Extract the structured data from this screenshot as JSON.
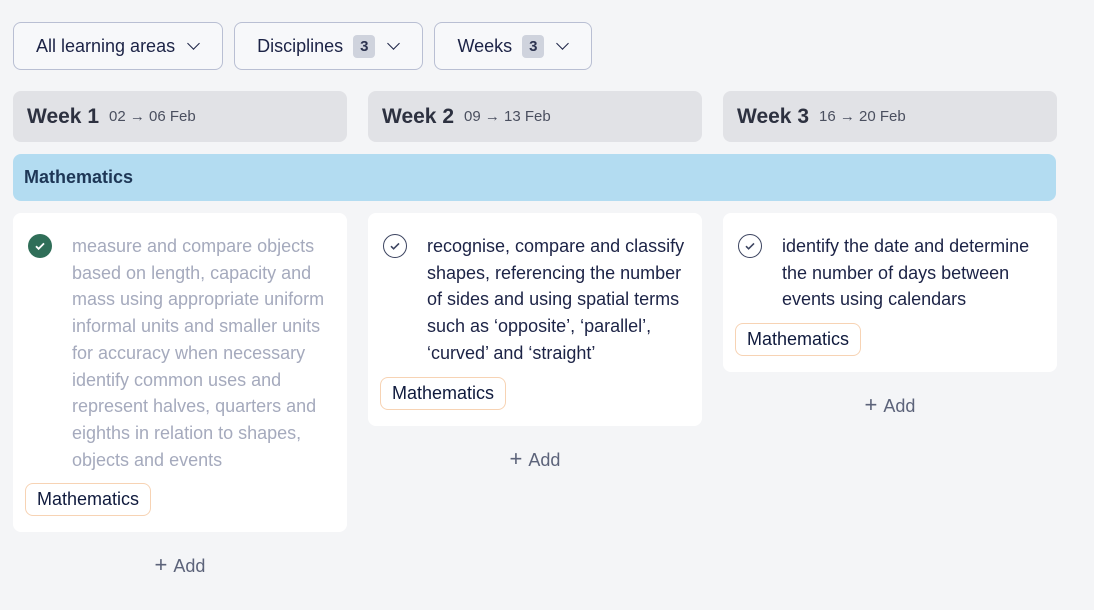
{
  "filters": [
    {
      "label": "All learning areas"
    },
    {
      "label": "Disciplines",
      "count": "3"
    },
    {
      "label": "Weeks",
      "count": "3"
    }
  ],
  "weeks": [
    {
      "title": "Week 1",
      "dates": "02 → 06 Feb"
    },
    {
      "title": "Week 2",
      "dates": "09 → 13 Feb"
    },
    {
      "title": "Week 3",
      "dates": "16 → 20 Feb"
    }
  ],
  "subject": "Mathematics",
  "cards": [
    {
      "text": "measure and compare objects based on length, capacity and mass using appropriate uniform informal units and smaller units for accuracy when necessary identify common uses and represent halves, quarters and eighths in relation to shapes, objects and events",
      "tag": "Mathematics",
      "completed": true
    },
    {
      "text": "recognise, compare and classify shapes, referencing the number of sides and using spatial terms such as ‘opposite’, ‘parallel’, ‘curved’ and ‘straight’",
      "tag": "Mathematics",
      "completed": false
    },
    {
      "text": "identify the date and determine the number of days between events using calendars",
      "tag": "Mathematics",
      "completed": false
    }
  ],
  "add_label": "Add",
  "colors": {
    "subject_bar": "#b3dcf1",
    "completed": "#2f6e58",
    "tag_border": "#f7d3b4"
  }
}
